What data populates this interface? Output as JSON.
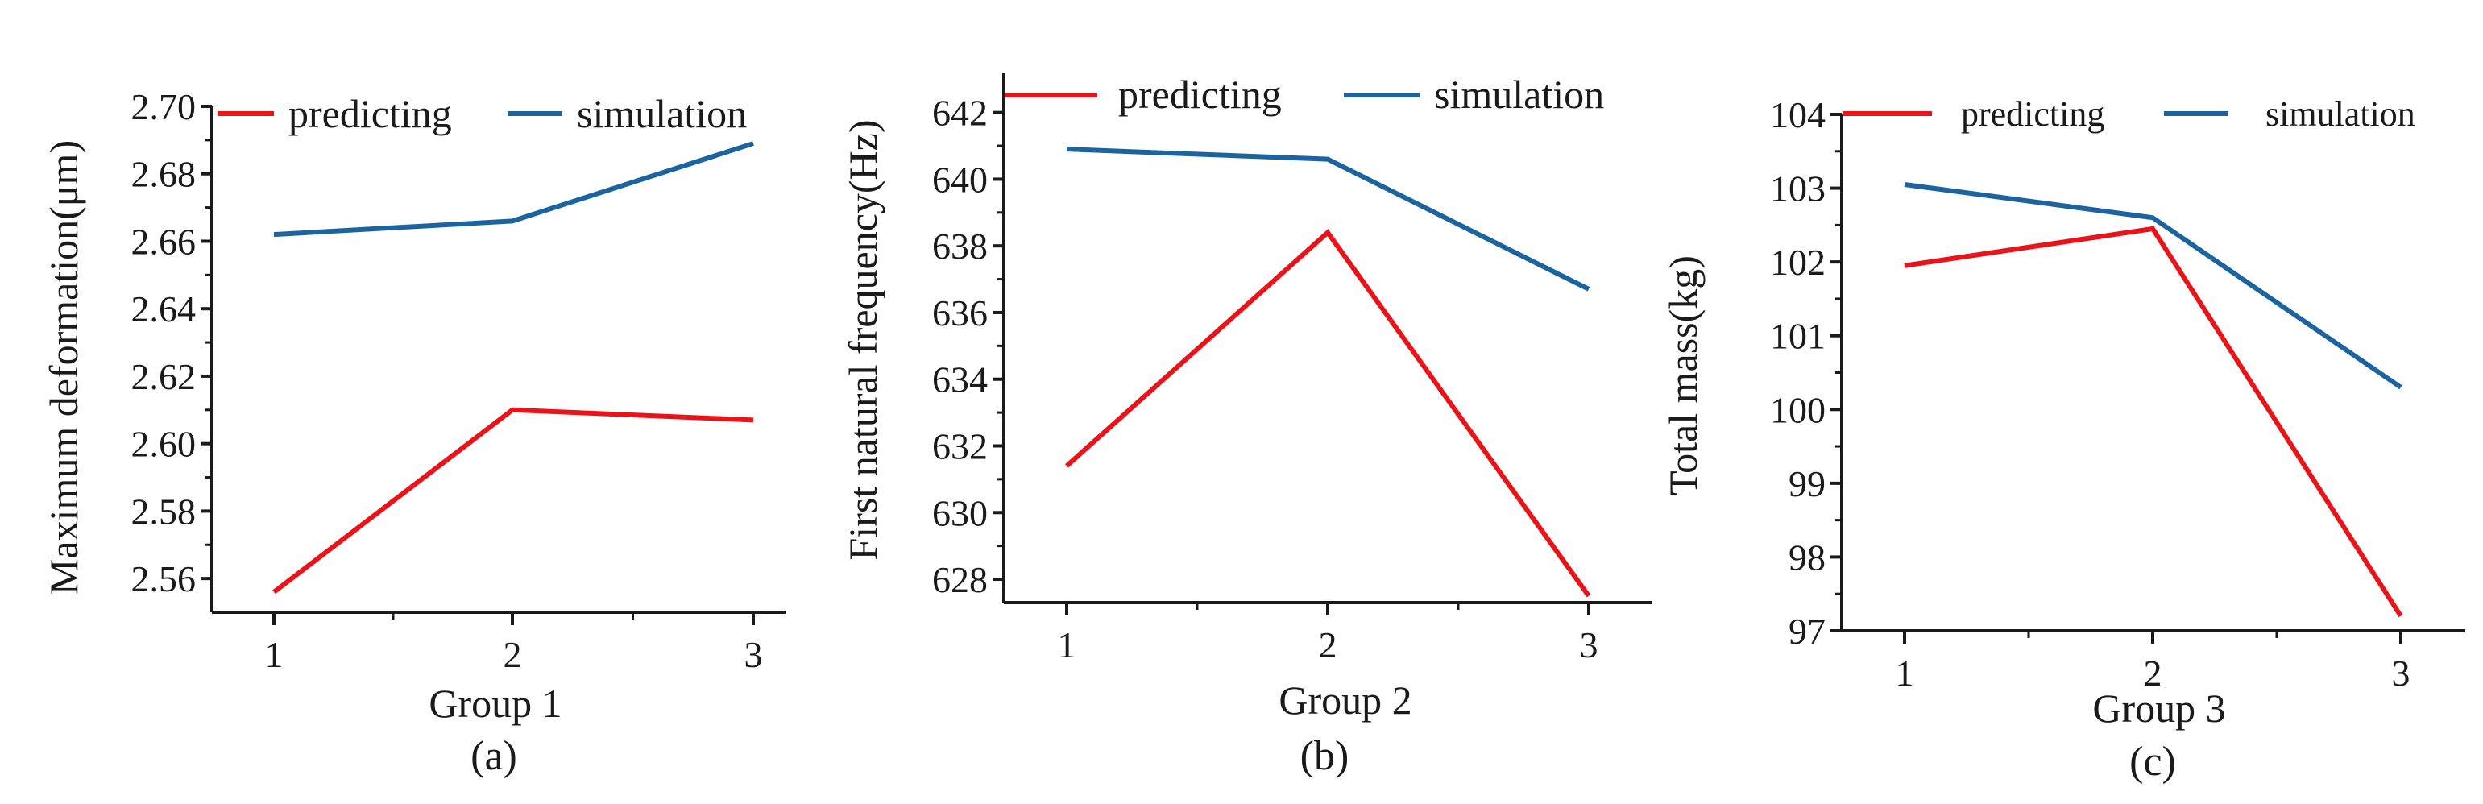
{
  "colors": {
    "predicting": "#e8141a",
    "simulation": "#1b64a0",
    "axis": "#1a1a1a"
  },
  "chart_data": [
    {
      "panel": "a",
      "type": "line",
      "caption": "(a)",
      "xlabel": "Group 1",
      "ylabel": "Maximum deformation(μm)",
      "x": [
        1,
        2,
        3
      ],
      "xticks": [
        "1",
        "2",
        "3"
      ],
      "yticks": [
        "2.56",
        "2.58",
        "2.60",
        "2.62",
        "2.64",
        "2.66",
        "2.68",
        "2.70"
      ],
      "ylim": [
        2.55,
        2.7
      ],
      "series": [
        {
          "name": "predicting",
          "values": [
            2.556,
            2.61,
            2.607
          ]
        },
        {
          "name": "simulation",
          "values": [
            2.662,
            2.666,
            2.689
          ]
        }
      ]
    },
    {
      "panel": "b",
      "type": "line",
      "caption": "(b)",
      "xlabel": "Group 2",
      "ylabel": "First natural frequency(Hz)",
      "x": [
        1,
        2,
        3
      ],
      "xticks": [
        "1",
        "2",
        "3"
      ],
      "yticks": [
        "628",
        "630",
        "632",
        "634",
        "636",
        "638",
        "640",
        "642"
      ],
      "ylim": [
        627.3,
        643.2
      ],
      "series": [
        {
          "name": "predicting",
          "values": [
            631.4,
            638.4,
            627.5
          ]
        },
        {
          "name": "simulation",
          "values": [
            640.9,
            640.6,
            636.7
          ]
        }
      ]
    },
    {
      "panel": "c",
      "type": "line",
      "caption": "(c)",
      "xlabel": "Group 3",
      "ylabel": "Total mass(kg)",
      "x": [
        1,
        2,
        3
      ],
      "xticks": [
        "1",
        "2",
        "3"
      ],
      "yticks": [
        "97",
        "98",
        "99",
        "100",
        "101",
        "102",
        "103",
        "104"
      ],
      "ylim": [
        97,
        104
      ],
      "series": [
        {
          "name": "predicting",
          "values": [
            101.95,
            102.45,
            97.2
          ]
        },
        {
          "name": "simulation",
          "values": [
            103.05,
            102.6,
            100.3
          ]
        }
      ]
    }
  ]
}
